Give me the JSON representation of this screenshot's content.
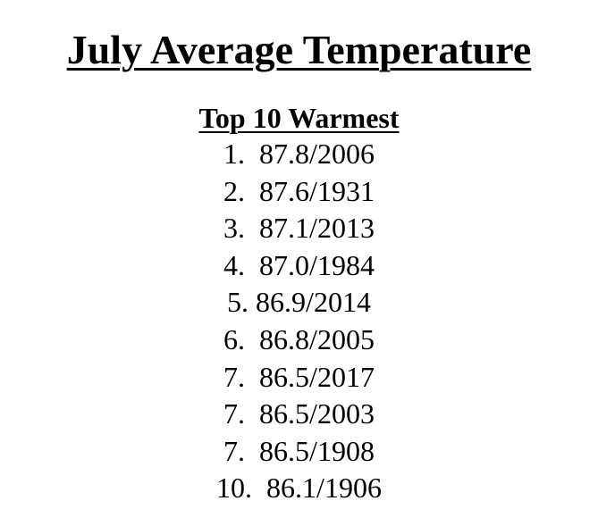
{
  "title": "July Average Temperature",
  "subtitle": "Top 10 Warmest",
  "entries": [
    "1.  87.8/2006",
    "2.  87.6/1931",
    "3.  87.1/2013",
    "4.  87.0/1984",
    "5. 86.9/2014",
    "6.  86.8/2005",
    "7.  86.5/2017",
    "7.  86.5/2003",
    "7.  86.5/1908",
    "10.  86.1/1906"
  ]
}
